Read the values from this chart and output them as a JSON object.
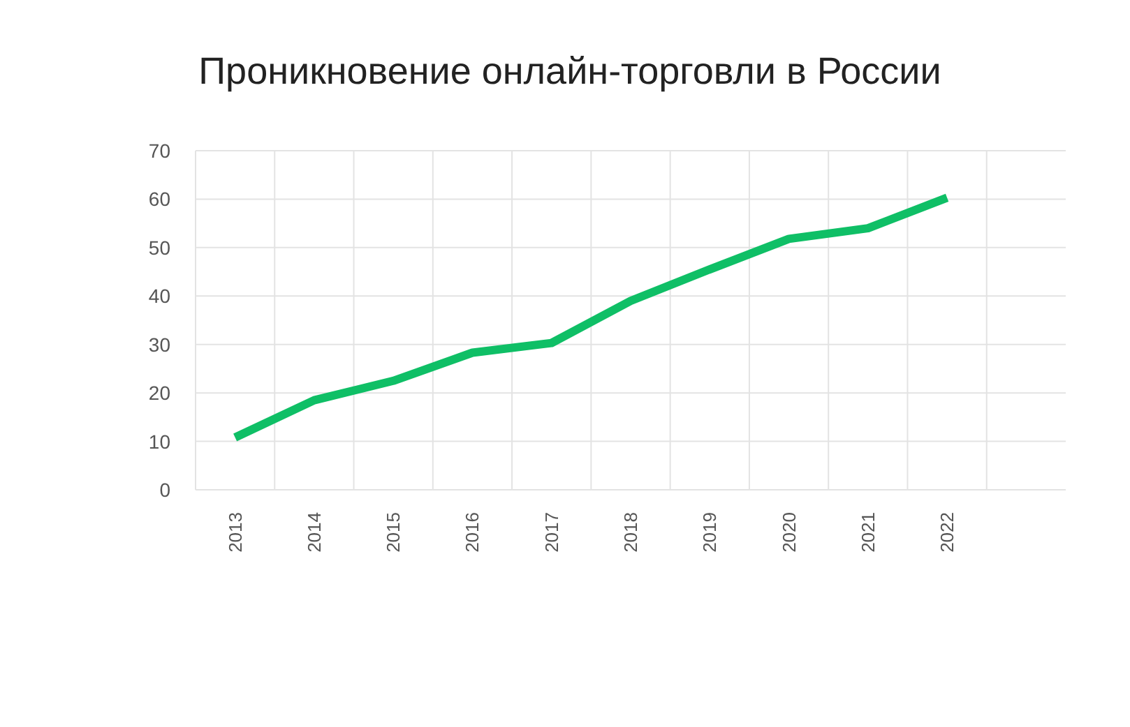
{
  "chart_data": {
    "type": "line",
    "title": "Проникновение онлайн-торговли в России",
    "categories": [
      "2013",
      "2014",
      "2015",
      "2016",
      "2017",
      "2018",
      "2019",
      "2020",
      "2021",
      "2022",
      null
    ],
    "series": [
      {
        "color": "#0fbf66",
        "values": [
          10.8,
          18.5,
          22.5,
          28.3,
          30.3,
          39,
          45.5,
          51.8,
          54,
          60.3,
          null
        ]
      }
    ],
    "ylim": [
      0,
      70
    ],
    "yticks": [
      0,
      10,
      20,
      30,
      40,
      50,
      60,
      70
    ],
    "grid": true,
    "marker": "none",
    "line_style": "solid"
  }
}
